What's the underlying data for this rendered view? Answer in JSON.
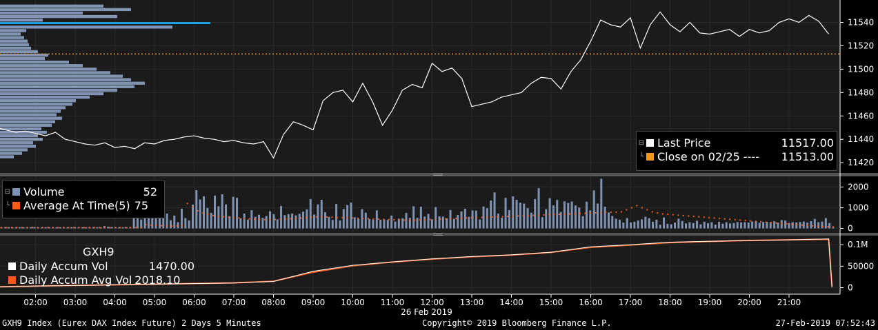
{
  "security": "GXH9",
  "footer": {
    "left": "GXH9 Index (Eurex DAX Index Future) 2 Days 5 Minutes",
    "center": "Copyright© 2019 Bloomberg Finance L.P.",
    "right": "27-Feb-2019 07:52:43"
  },
  "legend_price": {
    "last_label": "Last Price",
    "last_value": "11517.00",
    "close_label": "Close on 02/25 ---- ",
    "close_value": "11513.00"
  },
  "legend_volume": {
    "volume_label": "Volume",
    "volume_value": "52",
    "avg_label": "Average At Time(5)",
    "avg_value": "75"
  },
  "legend_accum": {
    "title": "GXH9",
    "vol_label": "Daily Accum Vol",
    "vol_value": "1470.00",
    "avg_label": "Daily Accum Avg Vol",
    "avg_value": "2018.10"
  },
  "colors": {
    "background": "#000000",
    "panel": "#1b1b1b",
    "price_line": "#ffffff",
    "close_line": "#f0961e",
    "volume_bar": "#7f93b4",
    "average": "#ff5a19",
    "profile": "#8ea2c4",
    "poc": "#1ea0e6",
    "grid": "#2a2a2a"
  },
  "chart_data": [
    {
      "type": "line",
      "name": "price",
      "series": [
        {
          "name": "Last Price",
          "x": [
            "01:00",
            "01:15",
            "01:30",
            "01:45",
            "02:00",
            "02:15",
            "02:30",
            "02:45",
            "03:00",
            "03:15",
            "03:30",
            "03:45",
            "04:00",
            "04:15",
            "04:30",
            "04:45",
            "05:00",
            "05:15",
            "05:30",
            "05:45",
            "06:00",
            "06:15",
            "06:30",
            "06:45",
            "07:00",
            "07:15",
            "07:30",
            "07:45",
            "08:00",
            "08:15",
            "08:30",
            "08:45",
            "09:00",
            "09:15",
            "09:30",
            "09:45",
            "10:00",
            "10:15",
            "10:30",
            "10:45",
            "11:00",
            "11:15",
            "11:30",
            "11:45",
            "12:00",
            "12:15",
            "12:30",
            "12:45",
            "13:00",
            "13:15",
            "13:30",
            "13:45",
            "14:00",
            "14:15",
            "14:30",
            "14:45",
            "15:00",
            "15:15",
            "15:30",
            "15:45",
            "16:00",
            "16:15",
            "16:30",
            "16:45",
            "17:00",
            "17:15",
            "17:30",
            "17:45",
            "18:00",
            "18:15",
            "18:30",
            "18:45",
            "19:00",
            "19:15",
            "19:30",
            "19:45",
            "20:00",
            "20:15",
            "20:30",
            "20:45",
            "21:00",
            "21:15",
            "21:30",
            "21:45",
            "22:00"
          ],
          "values": [
            11450,
            11448,
            11446,
            11447,
            11445,
            11443,
            11446,
            11440,
            11438,
            11436,
            11435,
            11437,
            11433,
            11434,
            11432,
            11437,
            11436,
            11439,
            11440,
            11442,
            11443,
            11441,
            11440,
            11438,
            11439,
            11437,
            11436,
            11438,
            11424,
            11444,
            11455,
            11452,
            11448,
            11473,
            11480,
            11482,
            11472,
            11488,
            11472,
            11452,
            11465,
            11482,
            11487,
            11484,
            11505,
            11498,
            11501,
            11492,
            11468,
            11470,
            11472,
            11476,
            11478,
            11480,
            11488,
            11493,
            11492,
            11483,
            11498,
            11508,
            11524,
            11542,
            11538,
            11536,
            11544,
            11518,
            11538,
            11549,
            11538,
            11532,
            11540,
            11531,
            11530,
            11532,
            11534,
            11528,
            11534,
            11531,
            11533,
            11540,
            11543,
            11540,
            11546,
            11541,
            11530
          ]
        },
        {
          "name": "Close on 02/25",
          "value": 11513
        }
      ],
      "ylim": [
        11413,
        11558
      ],
      "yticks": [
        11420,
        11440,
        11460,
        11480,
        11500,
        11520,
        11540
      ],
      "volume_profile": {
        "prices": [
          11425,
          11428,
          11431,
          11434,
          11437,
          11440,
          11443,
          11446,
          11449,
          11452,
          11455,
          11458,
          11461,
          11464,
          11467,
          11470,
          11473,
          11476,
          11479,
          11482,
          11485,
          11488,
          11491,
          11494,
          11497,
          11500,
          11503,
          11506,
          11509,
          11512,
          11515,
          11518,
          11521,
          11524,
          11527,
          11530,
          11533,
          11536,
          11539,
          11542,
          11545,
          11548,
          11551,
          11554
        ],
        "volumes": [
          20,
          32,
          40,
          52,
          48,
          62,
          55,
          68,
          60,
          75,
          80,
          90,
          82,
          88,
          95,
          105,
          110,
          130,
          150,
          170,
          195,
          210,
          190,
          178,
          160,
          140,
          120,
          100,
          65,
          70,
          55,
          45,
          42,
          40,
          35,
          30,
          38,
          250,
          305,
          62,
          170,
          120,
          190,
          150
        ]
      }
    },
    {
      "type": "bar",
      "name": "volume",
      "series": [
        {
          "name": "Volume",
          "values": [
            60,
            58,
            62,
            55,
            58,
            60,
            57,
            52,
            56,
            62,
            54,
            58,
            59,
            61,
            57,
            55,
            60,
            58,
            56,
            60,
            62,
            58,
            55,
            57,
            59,
            61,
            57,
            52,
            120,
            80,
            70,
            65,
            60,
            55,
            62,
            68,
            580,
            720,
            430,
            860,
            520,
            760,
            480,
            590,
            630,
            720,
            390,
            620,
            300,
            950,
            500,
            380,
            1150,
            1850,
            1400,
            1550,
            990,
            750,
            1580,
            1070,
            1650,
            1160,
            590,
            1530,
            1480,
            490,
            720,
            420,
            880,
            560,
            660,
            510,
            600,
            830,
            690,
            440,
            1080,
            640,
            690,
            720,
            630,
            710,
            810,
            920,
            1420,
            670,
            1160,
            1380,
            780,
            560,
            410,
            1180,
            380,
            940,
            1130,
            1250,
            540,
            470,
            930,
            760,
            460,
            420,
            870,
            420,
            430,
            410,
            620,
            330,
            470,
            490,
            750,
            510,
            1070,
            510,
            1050,
            570,
            700,
            440,
            1030,
            580,
            570,
            490,
            890,
            460,
            650,
            820,
            950,
            560,
            870,
            860,
            430,
            1060,
            980,
            1350,
            1740,
            720,
            510,
            1480,
            890,
            1550,
            1380,
            1240,
            1200,
            980,
            760,
            1420,
            1950,
            540,
            930,
            1460,
            1110,
            1380,
            800,
            1310,
            1230,
            1300,
            1110,
            1010,
            590,
            1290,
            870,
            1840,
            1200,
            2400,
            1050,
            770,
            600,
            470,
            420,
            280,
            500,
            290,
            320,
            380,
            440,
            560,
            490,
            320,
            420,
            180,
            530,
            220,
            200,
            280,
            470,
            360,
            240,
            300,
            260,
            370,
            200,
            320,
            250,
            300,
            180,
            320,
            230,
            300,
            240,
            260,
            310,
            290,
            300,
            280,
            330,
            350,
            270,
            310,
            320,
            300,
            340,
            280,
            400,
            380,
            260,
            300,
            290,
            310,
            330,
            280,
            350,
            460,
            300,
            330,
            500,
            260,
            52
          ]
        },
        {
          "name": "Average At Time(5)",
          "values": [
            35,
            38,
            40,
            42,
            38,
            40,
            42,
            36,
            40,
            38,
            42,
            40,
            38,
            40,
            36,
            38,
            40,
            42,
            38,
            40,
            38,
            36,
            40,
            42,
            38,
            40,
            38,
            36,
            180,
            150,
            140,
            130,
            120,
            110,
            120,
            130,
            1200,
            1050,
            850,
            750,
            680,
            620,
            580,
            560,
            540,
            520,
            500,
            480,
            460,
            450,
            440,
            430,
            420,
            430,
            440,
            450,
            470,
            480,
            500,
            520,
            540,
            560,
            560,
            550,
            540,
            530,
            520,
            510,
            500,
            490,
            480,
            470,
            460,
            450,
            440,
            430,
            420,
            410,
            400,
            400,
            400,
            410,
            420,
            430,
            440,
            450,
            460,
            470,
            480,
            490,
            500,
            510,
            520,
            530,
            540,
            550,
            560,
            570,
            580,
            590,
            600,
            610,
            620,
            630,
            640,
            650,
            660,
            670,
            680,
            690,
            700,
            710,
            720,
            730,
            740,
            750,
            760,
            770,
            780,
            790,
            800,
            900,
            1000,
            1100,
            1000,
            900,
            800,
            750,
            700,
            680,
            660,
            640,
            620,
            600,
            580,
            560,
            540,
            520,
            500,
            480,
            460,
            440,
            420,
            400,
            380,
            360,
            340,
            320,
            300,
            280,
            260,
            240,
            220,
            200,
            180,
            160,
            140,
            120,
            100,
            90,
            80,
            75
          ]
        }
      ],
      "ylim": [
        -150,
        2450
      ],
      "yticks": [
        0,
        1000,
        2000
      ]
    },
    {
      "type": "line",
      "name": "accum",
      "series": [
        {
          "name": "Daily Accum Vol",
          "x": [
            "01:00",
            "02:00",
            "03:00",
            "04:00",
            "05:00",
            "06:00",
            "07:00",
            "08:00",
            "09:00",
            "10:00",
            "11:00",
            "12:00",
            "13:00",
            "14:00",
            "15:00",
            "16:00",
            "17:00",
            "18:00",
            "19:00",
            "20:00",
            "21:00",
            "22:00",
            "22:05"
          ],
          "values": [
            2000,
            3500,
            5000,
            6500,
            8000,
            9500,
            11000,
            14500,
            38000,
            52000,
            60000,
            67000,
            72500,
            76500,
            82500,
            95000,
            100000,
            106000,
            108000,
            110000,
            111500,
            113500,
            1470
          ]
        },
        {
          "name": "Daily Accum Avg Vol",
          "x": [
            "01:00",
            "02:00",
            "03:00",
            "04:00",
            "05:00",
            "06:00",
            "07:00",
            "08:00",
            "09:00",
            "10:00",
            "11:00",
            "12:00",
            "13:00",
            "14:00",
            "15:00",
            "16:00",
            "17:00",
            "18:00",
            "19:00",
            "20:00",
            "21:00",
            "22:00",
            "22:05"
          ],
          "values": [
            2018,
            3600,
            5100,
            6600,
            8100,
            9600,
            11100,
            15000,
            36000,
            51000,
            59500,
            66500,
            72000,
            76000,
            82000,
            94000,
            99000,
            105000,
            107500,
            110000,
            111500,
            112500,
            2018
          ]
        }
      ],
      "ylim": [
        -12000,
        118000
      ],
      "yticks": [
        0,
        50000,
        100000
      ],
      "ytick_labels": [
        "0",
        "50000",
        "0.1M"
      ]
    }
  ],
  "x_axis": {
    "ticks": [
      "02:00",
      "03:00",
      "04:00",
      "05:00",
      "06:00",
      "07:00",
      "08:00",
      "09:00",
      "10:00",
      "11:00",
      "12:00",
      "13:00",
      "14:00",
      "15:00",
      "16:00",
      "17:00",
      "18:00",
      "19:00",
      "20:00",
      "21:00"
    ],
    "date_label": "26 Feb 2019"
  }
}
